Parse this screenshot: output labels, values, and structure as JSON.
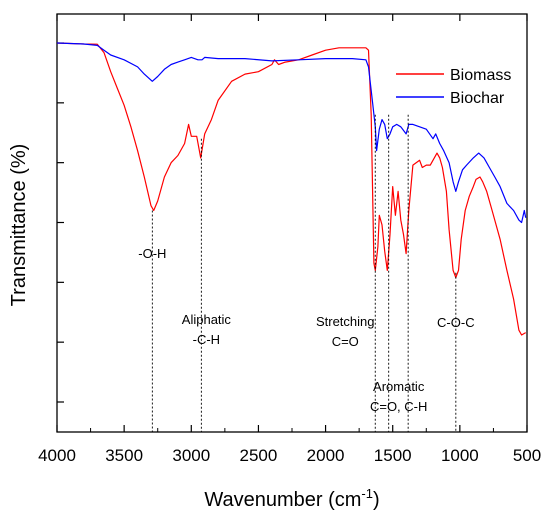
{
  "chart_data": {
    "type": "line",
    "title": "",
    "xlabel": "Wavenumber (cm",
    "xlabel_sup": "-1",
    "xlabel_end": ")",
    "ylabel": "Transmittance (%)",
    "xlim": [
      4000,
      500
    ],
    "x_reversed": true,
    "x_ticks": [
      4000,
      3500,
      3000,
      2500,
      2000,
      1500,
      1000,
      500
    ],
    "y_tick_count": 7,
    "y_tick_labels": false,
    "grid": false,
    "legend_position": "top-right",
    "series": [
      {
        "name": "Biomass",
        "color": "#ff0000",
        "points": [
          [
            4000,
            100
          ],
          [
            3800,
            99.6
          ],
          [
            3700,
            99.5
          ],
          [
            3650,
            96
          ],
          [
            3600,
            88
          ],
          [
            3550,
            81
          ],
          [
            3500,
            74
          ],
          [
            3450,
            65
          ],
          [
            3400,
            55
          ],
          [
            3350,
            44
          ],
          [
            3300,
            32
          ],
          [
            3280,
            30
          ],
          [
            3250,
            34
          ],
          [
            3200,
            44
          ],
          [
            3150,
            50
          ],
          [
            3100,
            53
          ],
          [
            3050,
            58
          ],
          [
            3020,
            66
          ],
          [
            3000,
            61
          ],
          [
            2960,
            61
          ],
          [
            2930,
            52
          ],
          [
            2900,
            62
          ],
          [
            2850,
            68
          ],
          [
            2800,
            76
          ],
          [
            2700,
            84
          ],
          [
            2600,
            87
          ],
          [
            2500,
            88
          ],
          [
            2400,
            91
          ],
          [
            2380,
            93
          ],
          [
            2350,
            91
          ],
          [
            2300,
            92
          ],
          [
            2200,
            93
          ],
          [
            2100,
            95
          ],
          [
            2000,
            97
          ],
          [
            1900,
            98
          ],
          [
            1800,
            98
          ],
          [
            1700,
            98
          ],
          [
            1680,
            97
          ],
          [
            1660,
            70
          ],
          [
            1640,
            8
          ],
          [
            1630,
            5
          ],
          [
            1610,
            15
          ],
          [
            1600,
            28
          ],
          [
            1580,
            24
          ],
          [
            1560,
            13
          ],
          [
            1540,
            5
          ],
          [
            1520,
            20
          ],
          [
            1500,
            40
          ],
          [
            1480,
            28
          ],
          [
            1460,
            38
          ],
          [
            1440,
            26
          ],
          [
            1420,
            20
          ],
          [
            1400,
            12
          ],
          [
            1380,
            30
          ],
          [
            1350,
            49
          ],
          [
            1300,
            51
          ],
          [
            1280,
            48
          ],
          [
            1250,
            49
          ],
          [
            1220,
            49
          ],
          [
            1190,
            52
          ],
          [
            1170,
            54
          ],
          [
            1150,
            52
          ],
          [
            1130,
            48
          ],
          [
            1100,
            38
          ],
          [
            1080,
            22
          ],
          [
            1050,
            5
          ],
          [
            1030,
            2
          ],
          [
            1010,
            5
          ],
          [
            990,
            18
          ],
          [
            960,
            30
          ],
          [
            930,
            36
          ],
          [
            900,
            40
          ],
          [
            880,
            43
          ],
          [
            850,
            44
          ],
          [
            830,
            42
          ],
          [
            800,
            38
          ],
          [
            760,
            30
          ],
          [
            700,
            18
          ],
          [
            650,
            5
          ],
          [
            600,
            -7
          ],
          [
            560,
            -20
          ],
          [
            540,
            -22
          ],
          [
            510,
            -21
          ]
        ]
      },
      {
        "name": "Biochar",
        "color": "#0000ff",
        "points": [
          [
            4000,
            100
          ],
          [
            3800,
            99.6
          ],
          [
            3700,
            99
          ],
          [
            3650,
            97
          ],
          [
            3600,
            95
          ],
          [
            3500,
            93
          ],
          [
            3400,
            90
          ],
          [
            3350,
            87
          ],
          [
            3290,
            84
          ],
          [
            3250,
            86
          ],
          [
            3200,
            89
          ],
          [
            3150,
            91
          ],
          [
            3100,
            92
          ],
          [
            3050,
            93
          ],
          [
            3000,
            94
          ],
          [
            2950,
            93
          ],
          [
            2920,
            93
          ],
          [
            2900,
            94
          ],
          [
            2800,
            93.5
          ],
          [
            2600,
            93.5
          ],
          [
            2400,
            92.5
          ],
          [
            2200,
            93
          ],
          [
            2000,
            93.5
          ],
          [
            1800,
            93.5
          ],
          [
            1700,
            93
          ],
          [
            1680,
            90
          ],
          [
            1650,
            75
          ],
          [
            1630,
            65
          ],
          [
            1620,
            55
          ],
          [
            1600,
            64
          ],
          [
            1580,
            68
          ],
          [
            1560,
            66
          ],
          [
            1540,
            60
          ],
          [
            1520,
            62
          ],
          [
            1500,
            65
          ],
          [
            1470,
            66
          ],
          [
            1440,
            65
          ],
          [
            1400,
            62
          ],
          [
            1380,
            66
          ],
          [
            1350,
            66
          ],
          [
            1300,
            65
          ],
          [
            1250,
            64
          ],
          [
            1200,
            60
          ],
          [
            1180,
            62
          ],
          [
            1150,
            58
          ],
          [
            1120,
            55
          ],
          [
            1080,
            50
          ],
          [
            1050,
            42
          ],
          [
            1030,
            38
          ],
          [
            1010,
            42
          ],
          [
            980,
            47
          ],
          [
            950,
            49
          ],
          [
            900,
            52
          ],
          [
            860,
            54
          ],
          [
            820,
            52
          ],
          [
            780,
            48
          ],
          [
            740,
            44
          ],
          [
            700,
            40
          ],
          [
            650,
            33
          ],
          [
            600,
            30
          ],
          [
            560,
            26
          ],
          [
            540,
            25
          ],
          [
            520,
            30
          ],
          [
            510,
            27
          ]
        ]
      }
    ],
    "y_domain": [
      -50,
      100
    ],
    "annotations": [
      {
        "x": 3290,
        "lines": [
          "-O-H"
        ]
      },
      {
        "x": 2925,
        "lines": [
          "Aliphatic",
          "-C-H"
        ]
      },
      {
        "x": 1630,
        "lines": [
          "Stretching",
          "C=O"
        ]
      },
      {
        "x": 1530,
        "lines": [
          "Aromatic",
          "C=O, C-H"
        ]
      },
      {
        "x": 1385,
        "lines": []
      },
      {
        "x": 1030,
        "lines": [
          "C-O-C"
        ]
      }
    ]
  }
}
